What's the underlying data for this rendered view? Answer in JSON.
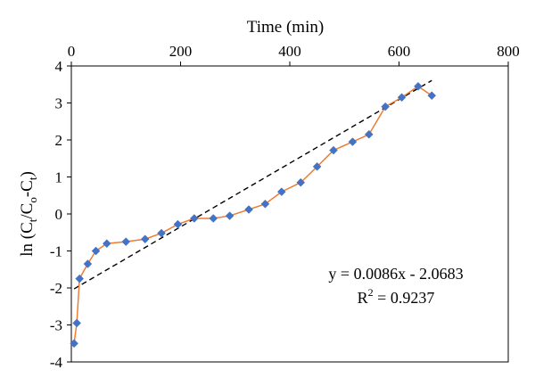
{
  "chart_data": {
    "type": "scatter",
    "xlabel": "Time (min)",
    "ylabel_parts": {
      "prefix": "ln (C",
      "t_sub": "t",
      "mid": "/C",
      "o_sub": "o",
      "dash": "-C",
      "t_sub2": "t",
      "suffix": ")"
    },
    "xlim": [
      0,
      800
    ],
    "ylim": [
      -4,
      4
    ],
    "x_ticks": [
      "0",
      "200",
      "400",
      "600",
      "800"
    ],
    "y_ticks": [
      "4",
      "3",
      "2",
      "1",
      "0",
      "-1",
      "-2",
      "-3",
      "-4"
    ],
    "x_tick_values": [
      0,
      200,
      400,
      600,
      800
    ],
    "y_tick_values": [
      4,
      3,
      2,
      1,
      0,
      -1,
      -2,
      -3,
      -4
    ],
    "x_axis_position": "top",
    "grid": false,
    "series": [
      {
        "type": "line+markers",
        "color_line": "#ED7D31",
        "color_marker": "#4472C4",
        "x": [
          5,
          10,
          15,
          30,
          45,
          65,
          100,
          135,
          165,
          195,
          225,
          260,
          290,
          325,
          355,
          385,
          420,
          450,
          480,
          515,
          545,
          575,
          605,
          635,
          660
        ],
        "y": [
          -3.5,
          -2.95,
          -1.75,
          -1.35,
          -1.0,
          -0.8,
          -0.75,
          -0.68,
          -0.52,
          -0.28,
          -0.12,
          -0.12,
          -0.05,
          0.12,
          0.27,
          0.6,
          0.85,
          1.28,
          1.72,
          1.95,
          2.15,
          2.9,
          3.15,
          3.45,
          3.2
        ]
      }
    ],
    "trendline": {
      "style": "dashed",
      "color": "#000000",
      "slope": 0.0086,
      "intercept": -2.0683,
      "x_range": [
        5,
        660
      ]
    },
    "annotation": {
      "equation": "y = 0.0086x - 2.0683",
      "r2_prefix": "R",
      "r2_exp": "2",
      "r2_suffix": " = 0.9237"
    }
  }
}
